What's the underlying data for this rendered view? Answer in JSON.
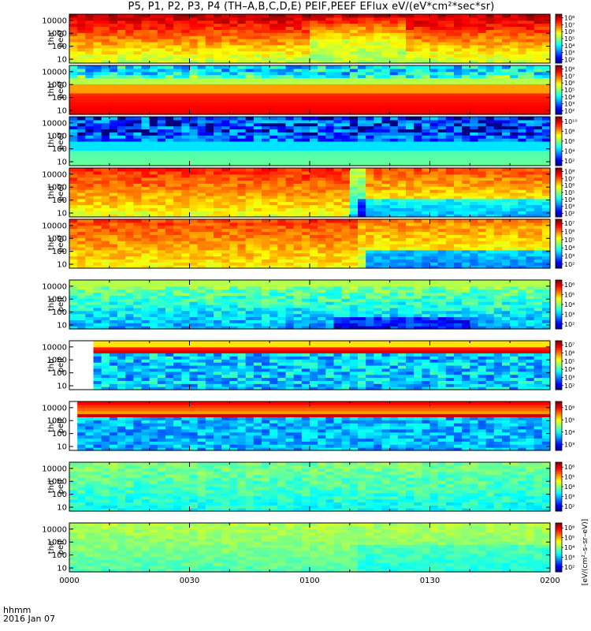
{
  "title": "P5, P1, P2, P3, P4 (TH–A,B,C,D,E) PEIF,PEEF EFlux eV/(eV*cm²*sec*sr)",
  "footer": {
    "label": "hhmm",
    "date": "2016 Jan 07"
  },
  "colorbar_unit": "[eV/(cm²–s–sr–eV)]",
  "chart_data": {
    "type": "heatmap",
    "title": "P5, P1, P2, P3, P4 (TH–A,B,C,D,E) PEIF,PEEF EFlux eV/(eV*cm²*sec*sr)",
    "x_ticks": [
      "0000",
      "0030",
      "0100",
      "0130",
      "0200"
    ],
    "x_range": [
      "00:00",
      "02:00"
    ],
    "y_scale": "log",
    "y_range": [
      5,
      30000
    ],
    "y_ticks": [
      "10",
      "100",
      "1000",
      "10000"
    ],
    "panels": [
      {
        "probe": "tha",
        "species": "peef",
        "label_top": "tha",
        "label_bottom": "peef",
        "cbar_ticks": [
          "10²",
          "10³",
          "10⁴",
          "10⁵",
          "10⁶",
          "10⁷",
          "10⁸"
        ]
      },
      {
        "probe": "thb",
        "species": "peef",
        "label_top": "thb",
        "label_bottom": "peef",
        "cbar_ticks": [
          "10²",
          "10³",
          "10⁴",
          "10⁵",
          "10⁶",
          "10⁷",
          "10⁸"
        ]
      },
      {
        "probe": "thc",
        "species": "peef",
        "label_top": "thc",
        "label_bottom": "peef",
        "cbar_ticks": [
          "10²",
          "10⁴",
          "10⁶",
          "10⁸",
          "10¹⁰"
        ]
      },
      {
        "probe": "thd",
        "species": "peef",
        "label_top": "thd",
        "label_bottom": "peef",
        "cbar_ticks": [
          "10²",
          "10³",
          "10⁴",
          "10⁵",
          "10⁶",
          "10⁷",
          "10⁸"
        ]
      },
      {
        "probe": "the",
        "species": "peef",
        "label_top": "the",
        "label_bottom": "peef",
        "cbar_ticks": [
          "10²",
          "10³",
          "10⁴",
          "10⁵",
          "10⁶",
          "10⁷"
        ]
      },
      {
        "probe": "tha",
        "species": "peif",
        "label_top": "tha",
        "label_bottom": "peif",
        "cbar_ticks": [
          "10²",
          "10³",
          "10⁴",
          "10⁵",
          "10⁶"
        ]
      },
      {
        "probe": "thb",
        "species": "peif",
        "label_top": "thb",
        "label_bottom": "peif",
        "cbar_ticks": [
          "10²",
          "10³",
          "10⁴",
          "10⁵",
          "10⁶",
          "10⁷"
        ]
      },
      {
        "probe": "thc",
        "species": "peif",
        "label_top": "thc",
        "label_bottom": "peif",
        "cbar_ticks": [
          "10³",
          "10⁴",
          "10⁵",
          "10⁶"
        ]
      },
      {
        "probe": "thd",
        "species": "peif",
        "label_top": "thd",
        "label_bottom": "peif",
        "cbar_ticks": [
          "10²",
          "10³",
          "10⁴",
          "10⁵",
          "10⁶"
        ]
      },
      {
        "probe": "the",
        "species": "peif",
        "label_top": "the",
        "label_bottom": "peif",
        "cbar_ticks": [
          "10²",
          "10³",
          "10⁴",
          "10⁵",
          "10⁶"
        ]
      }
    ]
  }
}
